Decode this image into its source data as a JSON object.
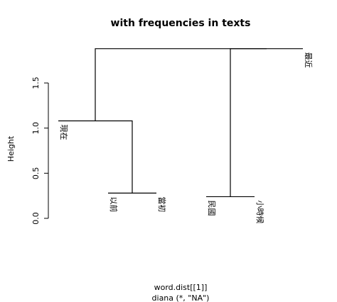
{
  "chart_data": {
    "type": "dendrogram",
    "title": "with frequencies in texts",
    "xlabel": "word.dist[[1]]",
    "sublabel": "diana (*, \"NA\")",
    "ylabel": "Height",
    "ylim": [
      0,
      1.9
    ],
    "yticks": [
      0.0,
      0.5,
      1.0,
      1.5
    ],
    "ytick_labels": [
      "0.0",
      "0.5",
      "1.0",
      "1.5"
    ],
    "leaves": [
      "現在",
      "以前",
      "當初",
      "民國",
      "小時候",
      "最近"
    ],
    "leaf_heights": [
      1.08,
      0.28,
      0.28,
      0.24,
      0.24,
      1.88
    ],
    "merges": [
      {
        "id": "m1",
        "left": "leaf:1",
        "right": "leaf:2",
        "height": 0.28
      },
      {
        "id": "m2",
        "left": "leaf:3",
        "right": "leaf:4",
        "height": 0.24
      },
      {
        "id": "m3",
        "left": "leaf:0",
        "right": "m1",
        "height": 1.08
      },
      {
        "id": "m4",
        "left": "m2",
        "right": "leaf:5",
        "height": 1.88
      },
      {
        "id": "m5",
        "left": "m3",
        "right": "m4",
        "height": 1.88
      }
    ]
  }
}
